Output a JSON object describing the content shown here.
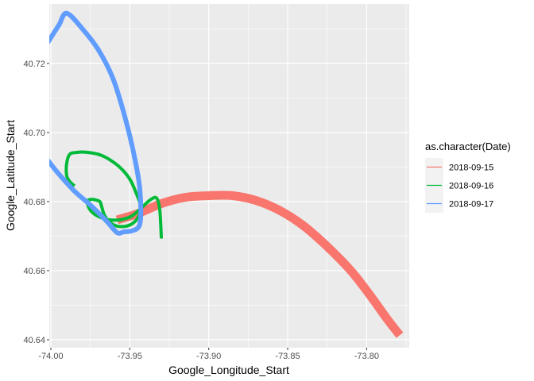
{
  "chart_data": {
    "type": "line",
    "xlabel": "Google_Longitude_Start",
    "ylabel": "Google_Latitude_Start",
    "xlim": [
      -74.001,
      -73.773
    ],
    "ylim": [
      40.6377,
      40.7372
    ],
    "x_ticks": [
      -74.0,
      -73.95,
      -73.9,
      -73.85,
      -73.8
    ],
    "x_tick_labels": [
      "-74.00",
      "-73.95",
      "-73.90",
      "-73.85",
      "-73.80"
    ],
    "y_ticks": [
      40.64,
      40.66,
      40.68,
      40.7,
      40.72
    ],
    "y_tick_labels": [
      "40.64",
      "40.66",
      "40.68",
      "40.70",
      "40.72"
    ],
    "grid": true,
    "legend": {
      "title": "as.character(Date)",
      "position": "right"
    },
    "series": [
      {
        "name": "2018-09-15",
        "color": "#F8766D",
        "width": 11,
        "x": [
          -73.958,
          -73.945,
          -73.93,
          -73.915,
          -73.9,
          -73.885,
          -73.87,
          -73.855,
          -73.84,
          -73.825,
          -73.81,
          -73.798,
          -73.787,
          -73.779
        ],
        "y": [
          40.6747,
          40.6765,
          40.6794,
          40.6812,
          40.6817,
          40.6817,
          40.6803,
          40.6774,
          40.673,
          40.667,
          40.66,
          40.653,
          40.646,
          40.6413
        ]
      },
      {
        "name": "2018-09-16",
        "color": "#00BA38",
        "width": 4,
        "x": [
          -73.985,
          -73.988,
          -73.99,
          -73.99,
          -73.988,
          -73.984,
          -73.978,
          -73.97,
          -73.963,
          -73.956,
          -73.95,
          -73.946,
          -73.943,
          -73.945,
          -73.95,
          -73.957,
          -73.962,
          -73.966,
          -73.968,
          -73.969,
          -73.972,
          -73.975,
          -73.977,
          -73.975,
          -73.969,
          -73.96,
          -73.95,
          -73.943,
          -73.937,
          -73.933,
          -73.931,
          -73.93
        ],
        "y": [
          40.6845,
          40.6858,
          40.6875,
          40.691,
          40.6937,
          40.6942,
          40.6943,
          40.6937,
          40.6922,
          40.6898,
          40.6865,
          40.6825,
          40.6783,
          40.6752,
          40.6732,
          40.6728,
          40.6738,
          40.676,
          40.6788,
          40.68,
          40.6805,
          40.6806,
          40.68,
          40.6775,
          40.6755,
          40.6746,
          40.6755,
          40.678,
          40.6805,
          40.681,
          40.6775,
          40.6693
        ]
      },
      {
        "name": "2018-09-17",
        "color": "#619CFF",
        "width": 6,
        "x": [
          -74.002,
          -73.995,
          -73.99,
          -73.98,
          -73.97,
          -73.961,
          -73.954,
          -73.948,
          -73.944,
          -73.943,
          -73.944,
          -73.948,
          -73.954,
          -73.958,
          -73.965,
          -73.975,
          -73.985,
          -73.995,
          -74.002
        ],
        "y": [
          40.726,
          40.731,
          40.7345,
          40.73,
          40.724,
          40.716,
          40.706,
          40.695,
          40.685,
          40.677,
          40.673,
          40.6716,
          40.6712,
          40.671,
          40.6745,
          40.679,
          40.683,
          40.688,
          40.692
        ]
      }
    ]
  }
}
